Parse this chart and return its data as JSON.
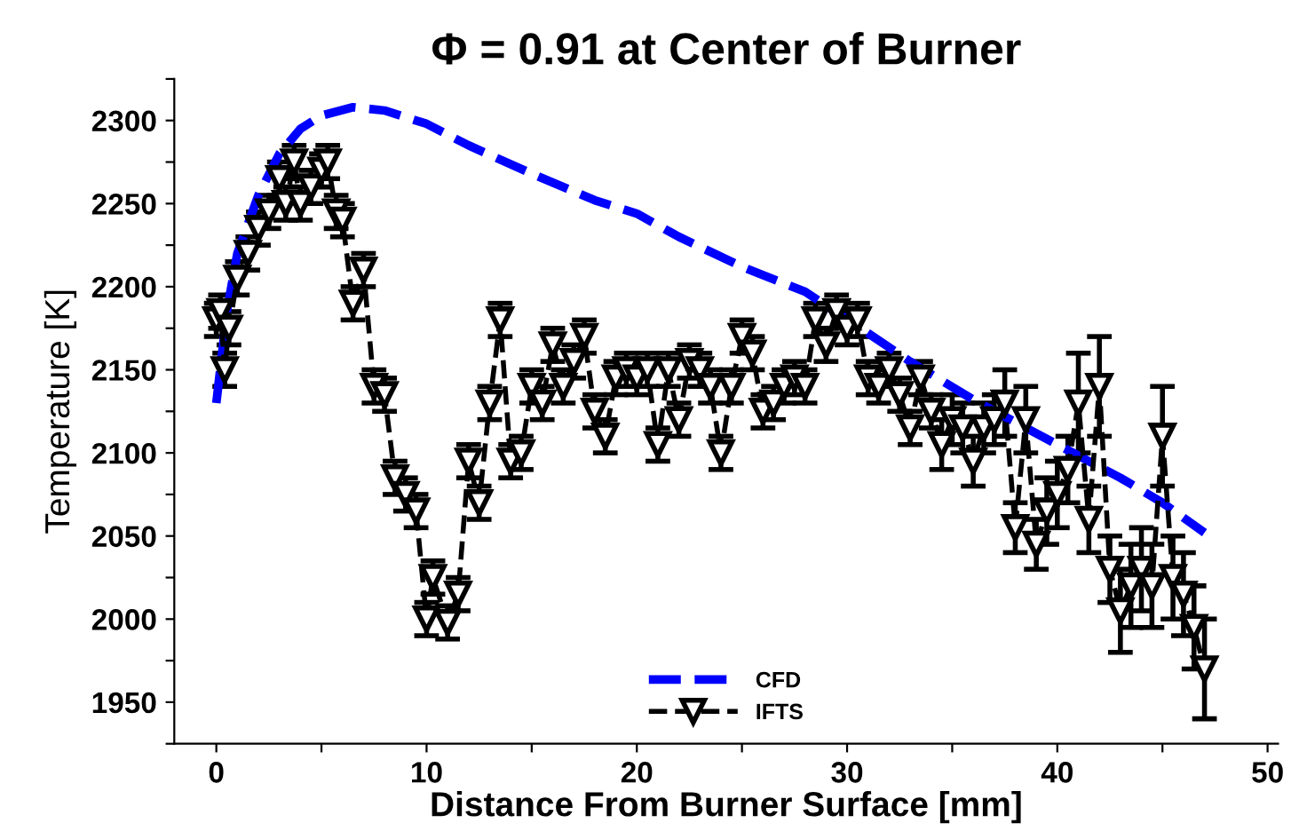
{
  "chart_data": {
    "type": "line",
    "title": "Φ = 0.91 at Center of Burner",
    "xlabel": "Distance From Burner Surface [mm]",
    "ylabel": "Temperature [K]",
    "xlim": [
      -2,
      50.5
    ],
    "ylim": [
      1925,
      2325
    ],
    "xticks": [
      0,
      {
        "value": 5,
        "label": null
      },
      10,
      {
        "value": 15,
        "label": null
      },
      20,
      {
        "value": 25,
        "label": null
      },
      30,
      {
        "value": 35,
        "label": null
      },
      40,
      {
        "value": 45,
        "label": null
      },
      50
    ],
    "yticks": [
      {
        "value": 1925,
        "label": null
      },
      1950,
      {
        "value": 1975,
        "label": null
      },
      2000,
      {
        "value": 2025,
        "label": null
      },
      2050,
      {
        "value": 2075,
        "label": null
      },
      2100,
      {
        "value": 2125,
        "label": null
      },
      2150,
      {
        "value": 2175,
        "label": null
      },
      2200,
      {
        "value": 2225,
        "label": null
      },
      2250,
      {
        "value": 2275,
        "label": null
      },
      2300,
      {
        "value": 2325,
        "label": null
      }
    ],
    "grid": false,
    "legend": "bottom",
    "line_style": "dashed",
    "series": [
      {
        "name": "CFD",
        "color": "#0000ff",
        "marker": "none",
        "x": [
          0,
          0.5,
          1,
          2,
          3,
          4,
          5,
          6.5,
          8,
          10,
          12,
          15,
          18,
          20,
          22,
          25,
          28,
          31,
          33,
          36,
          40,
          43,
          45,
          47
        ],
        "values": [
          2130,
          2185,
          2220,
          2255,
          2280,
          2295,
          2303,
          2308,
          2306,
          2298,
          2285,
          2268,
          2252,
          2244,
          2230,
          2212,
          2197,
          2172,
          2155,
          2132,
          2105,
          2085,
          2070,
          2052
        ]
      },
      {
        "name": "IFTS",
        "color": "#000000",
        "marker": "triangle",
        "x": [
          0,
          0.2,
          0.4,
          0.6,
          1,
          1.5,
          2,
          2.5,
          3,
          3.3,
          3.7,
          4,
          4.5,
          5,
          5.3,
          5.7,
          6,
          6.5,
          7,
          7.5,
          8,
          8.5,
          9,
          9.5,
          10,
          10.3,
          11,
          11.5,
          12,
          12.5,
          13,
          13.5,
          14,
          14.5,
          15,
          15.5,
          16,
          16.5,
          17,
          17.5,
          18,
          18.5,
          19,
          19.5,
          20,
          20.5,
          21,
          21.5,
          22,
          22.5,
          23,
          23.5,
          24,
          24.5,
          25,
          25.5,
          26,
          26.5,
          27,
          27.5,
          28,
          28.5,
          29,
          29.5,
          30,
          30.5,
          31,
          31.5,
          32,
          32.5,
          33,
          33.5,
          34,
          34.5,
          35,
          35.5,
          36,
          36.5,
          37,
          37.5,
          38,
          38.5,
          39,
          39.5,
          40,
          40.5,
          41,
          41.5,
          42,
          42.5,
          43,
          43.5,
          44,
          44.5,
          45,
          45.5,
          46,
          46.5,
          47
        ],
        "values": [
          2180,
          2185,
          2150,
          2175,
          2205,
          2220,
          2235,
          2245,
          2265,
          2250,
          2275,
          2250,
          2260,
          2270,
          2275,
          2245,
          2240,
          2190,
          2210,
          2140,
          2135,
          2085,
          2075,
          2065,
          2000,
          2025,
          1998,
          2015,
          2095,
          2070,
          2130,
          2180,
          2095,
          2100,
          2140,
          2130,
          2165,
          2140,
          2155,
          2170,
          2125,
          2110,
          2145,
          2150,
          2145,
          2150,
          2105,
          2150,
          2120,
          2155,
          2150,
          2140,
          2100,
          2140,
          2170,
          2160,
          2125,
          2130,
          2140,
          2145,
          2140,
          2180,
          2165,
          2185,
          2175,
          2180,
          2145,
          2140,
          2150,
          2135,
          2115,
          2145,
          2125,
          2105,
          2120,
          2115,
          2095,
          2115,
          2120,
          2130,
          2055,
          2120,
          2045,
          2065,
          2075,
          2090,
          2130,
          2060,
          2140,
          2030,
          2005,
          2020,
          2030,
          2020,
          2110,
          2025,
          2015,
          1995,
          1970
        ],
        "errors": [
          10,
          10,
          10,
          10,
          10,
          10,
          10,
          10,
          10,
          10,
          10,
          10,
          10,
          10,
          10,
          10,
          10,
          10,
          10,
          10,
          10,
          10,
          10,
          10,
          10,
          10,
          10,
          10,
          10,
          10,
          10,
          10,
          10,
          10,
          10,
          10,
          10,
          10,
          10,
          10,
          10,
          10,
          10,
          10,
          10,
          10,
          10,
          10,
          10,
          10,
          10,
          10,
          10,
          10,
          10,
          10,
          10,
          10,
          10,
          10,
          10,
          10,
          10,
          10,
          10,
          10,
          10,
          10,
          10,
          10,
          10,
          10,
          10,
          15,
          15,
          15,
          15,
          15,
          15,
          20,
          15,
          20,
          15,
          20,
          20,
          20,
          30,
          20,
          30,
          20,
          25,
          25,
          25,
          25,
          30,
          25,
          25,
          25,
          30
        ]
      }
    ]
  }
}
